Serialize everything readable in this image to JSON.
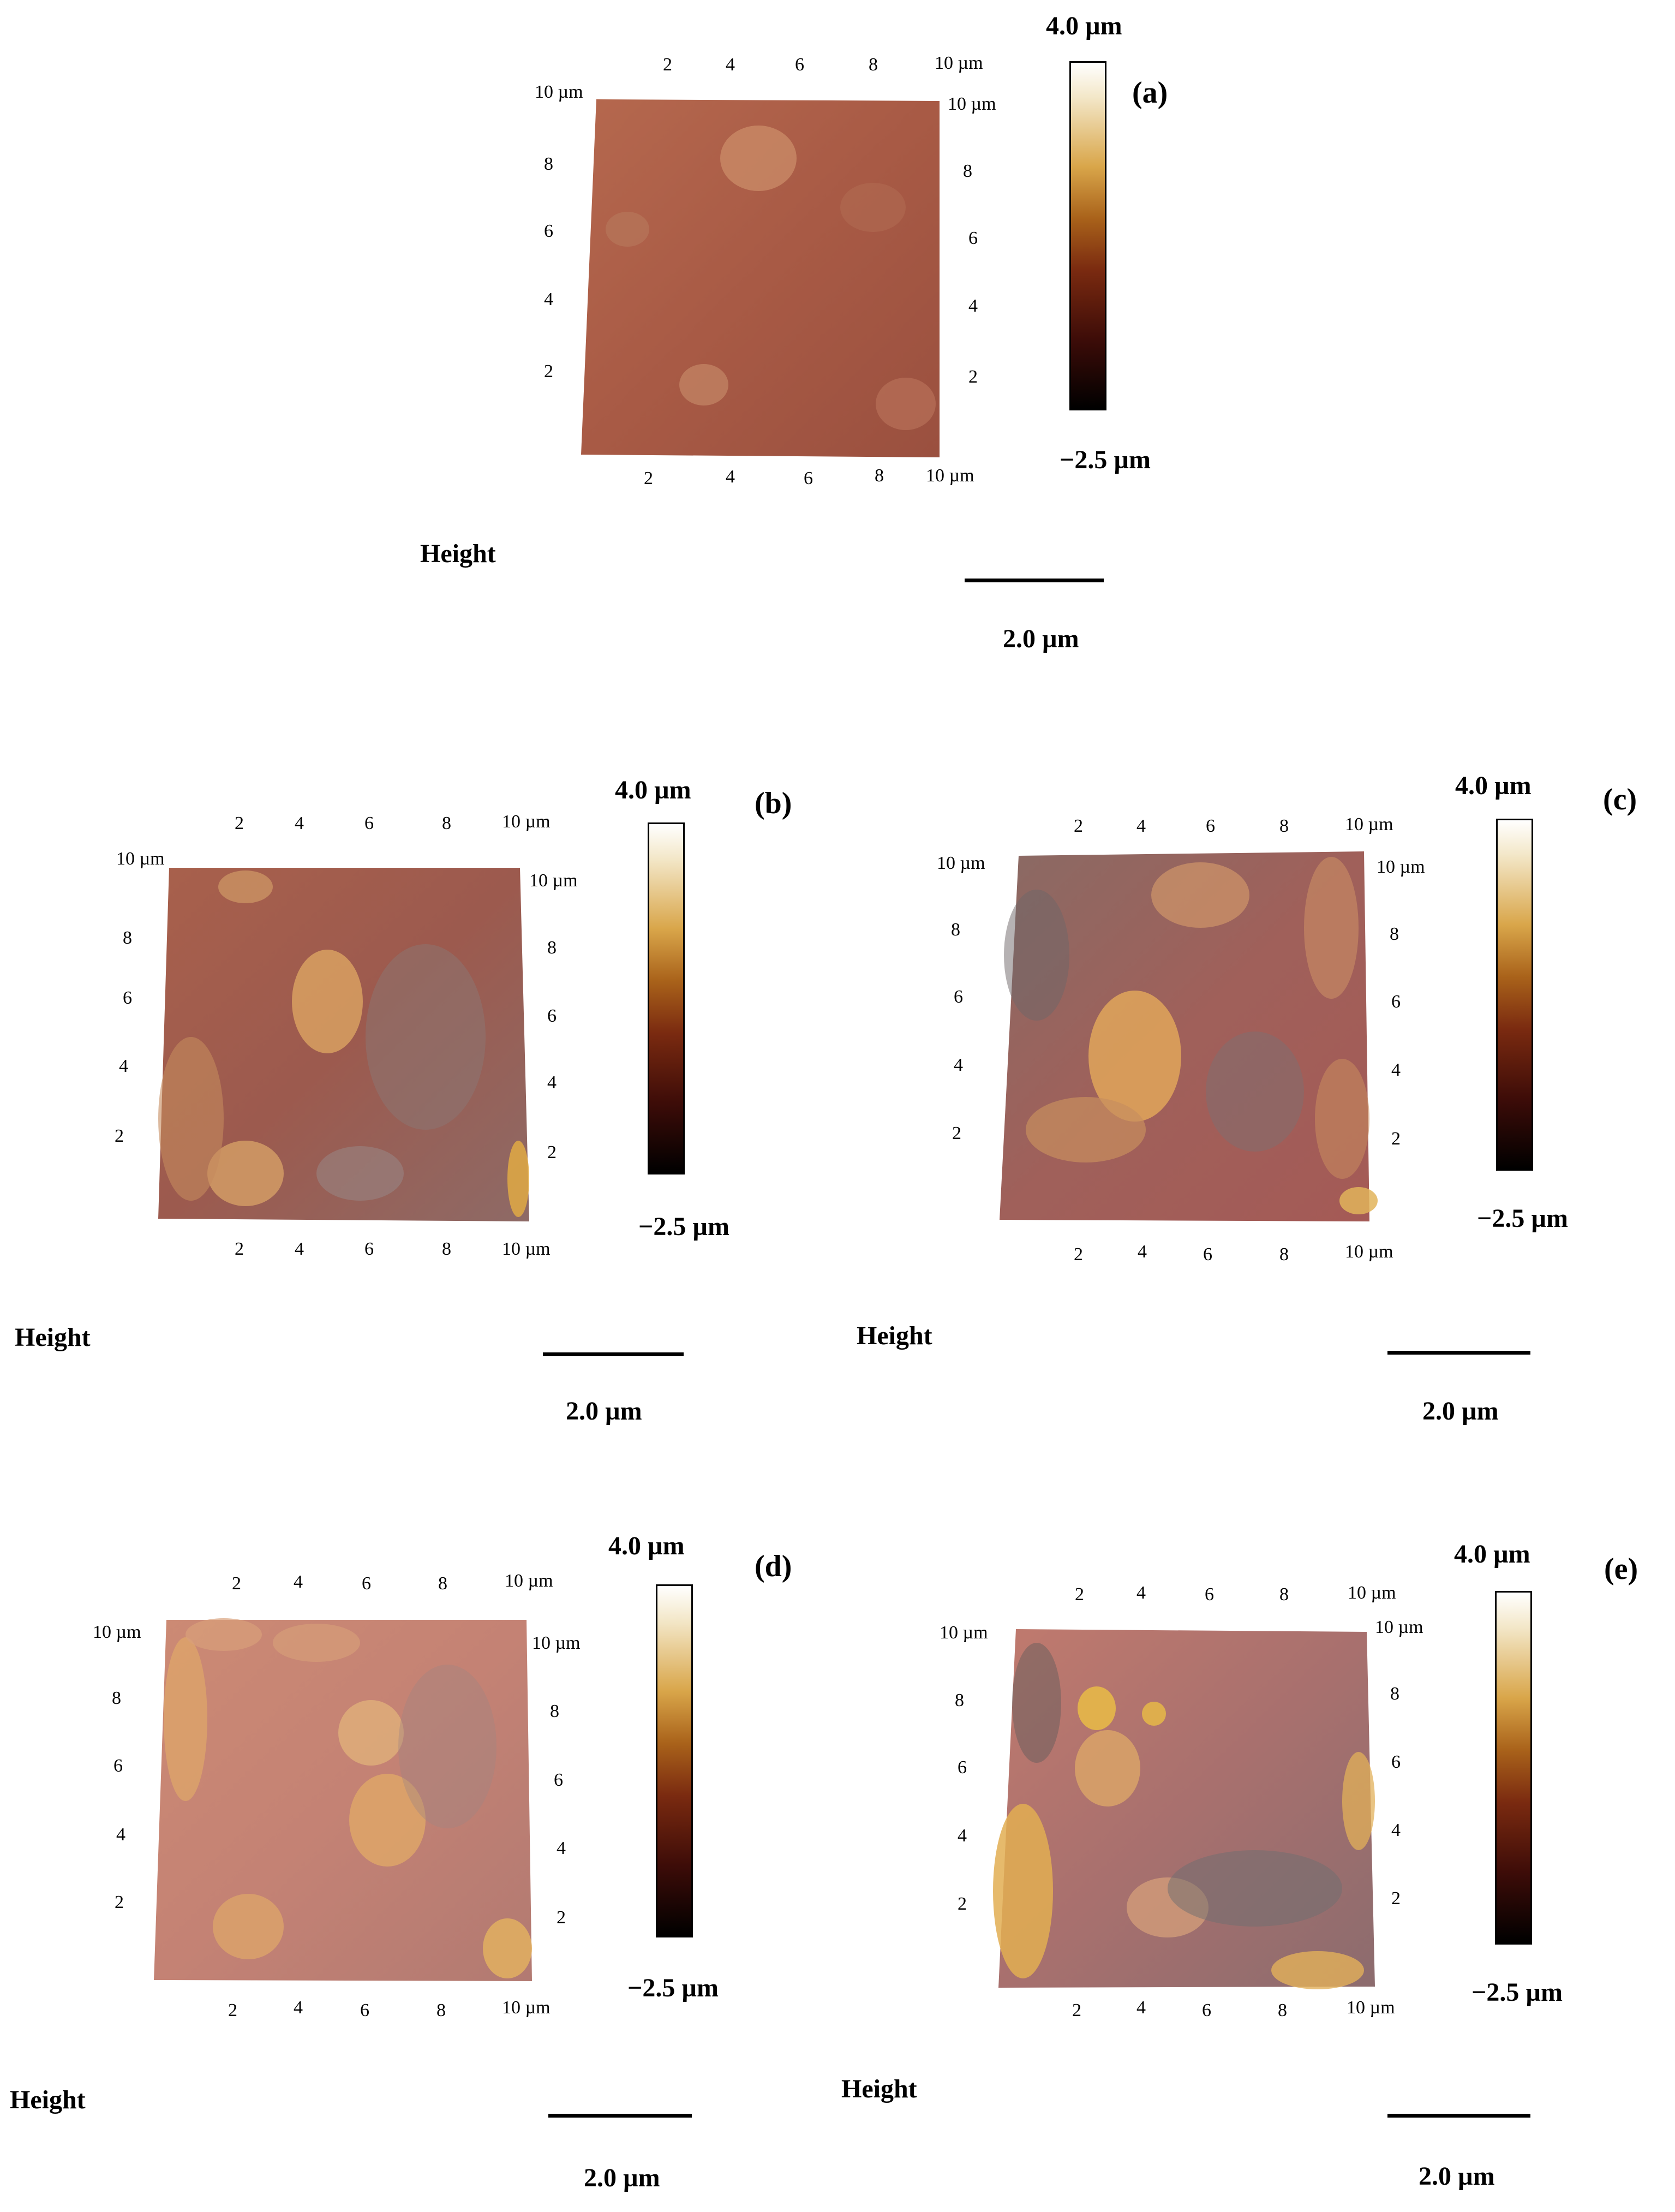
{
  "figure": {
    "panels": [
      {
        "id": "a",
        "letter": "(a)",
        "top_ticks": [
          "2",
          "4",
          "6",
          "8",
          "10 µm"
        ],
        "bottom_ticks": [
          "2",
          "4",
          "6",
          "8",
          "10 µm"
        ],
        "left_ticks": [
          "10 µm",
          "8",
          "6",
          "4",
          "2"
        ],
        "right_ticks": [
          "10 µm",
          "8",
          "6",
          "4",
          "2"
        ],
        "colorbar_max": "4.0 µm",
        "colorbar_min": "−2.5 µm",
        "channel": "Height",
        "scale": "2.0 µm"
      },
      {
        "id": "b",
        "letter": "(b)",
        "top_ticks": [
          "2",
          "4",
          "6",
          "8",
          "10 µm"
        ],
        "bottom_ticks": [
          "2",
          "4",
          "6",
          "8",
          "10 µm"
        ],
        "left_ticks": [
          "10 µm",
          "8",
          "6",
          "4",
          "2"
        ],
        "right_ticks": [
          "10 µm",
          "8",
          "6",
          "4",
          "2"
        ],
        "colorbar_max": "4.0 µm",
        "colorbar_min": "−2.5 µm",
        "channel": "Height",
        "scale": "2.0 µm"
      },
      {
        "id": "c",
        "letter": "(c)",
        "top_ticks": [
          "2",
          "4",
          "6",
          "8",
          "10 µm"
        ],
        "bottom_ticks": [
          "2",
          "4",
          "6",
          "8",
          "10 µm"
        ],
        "left_ticks": [
          "10 µm",
          "8",
          "6",
          "4",
          "2"
        ],
        "right_ticks": [
          "10 µm",
          "8",
          "6",
          "4",
          "2"
        ],
        "colorbar_max": "4.0 µm",
        "colorbar_min": "−2.5 µm",
        "channel": "Height",
        "scale": "2.0 µm"
      },
      {
        "id": "d",
        "letter": "(d)",
        "top_ticks": [
          "2",
          "4",
          "6",
          "8",
          "10 µm"
        ],
        "bottom_ticks": [
          "2",
          "4",
          "6",
          "8",
          "10 µm"
        ],
        "left_ticks": [
          "10 µm",
          "8",
          "6",
          "4",
          "2"
        ],
        "right_ticks": [
          "10 µm",
          "8",
          "6",
          "4",
          "2"
        ],
        "colorbar_max": "4.0 µm",
        "colorbar_min": "−2.5 µm",
        "channel": "Height",
        "scale": "2.0 µm"
      },
      {
        "id": "e",
        "letter": "(e)",
        "top_ticks": [
          "2",
          "4",
          "6",
          "8",
          "10 µm"
        ],
        "bottom_ticks": [
          "2",
          "4",
          "6",
          "8",
          "10 µm"
        ],
        "left_ticks": [
          "10 µm",
          "8",
          "6",
          "4",
          "2"
        ],
        "right_ticks": [
          "10 µm",
          "8",
          "6",
          "4",
          "2"
        ],
        "colorbar_max": "4.0 µm",
        "colorbar_min": "−2.5 µm",
        "channel": "Height",
        "scale": "2.0 µm"
      }
    ],
    "colormap": [
      "#000000",
      "#3d0c08",
      "#7a2a10",
      "#a9621a",
      "#d9a64a",
      "#f3e7c8",
      "#ffffff"
    ]
  }
}
